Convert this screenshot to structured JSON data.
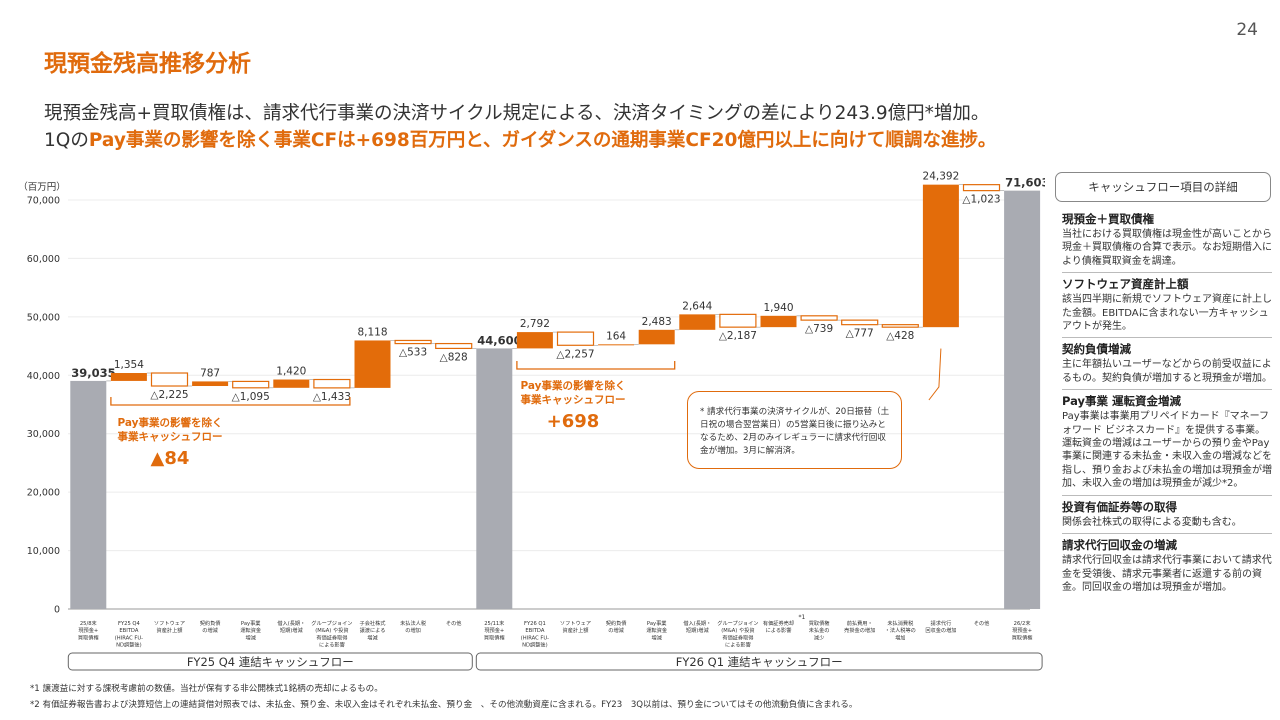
{
  "page_number": "24",
  "title": "現預金残高推移分析",
  "subtitle": {
    "line1": "現預金残高+買取債権は、請求代行事業の決済サイクル規定による、決済タイミングの差により243.9億円*増加。",
    "line2_prefix": "1Qの",
    "line2_highlight": "Pay事業の影響を除く事業CFは+698百万円と、ガイダンスの通期事業CF20億円以上に向けて順調な進捗。"
  },
  "chart_data": {
    "type": "bar",
    "subtype": "waterfall",
    "unit_label": "（百万円）",
    "ylim": [
      0,
      75000
    ],
    "yticks": [
      0,
      10000,
      20000,
      30000,
      40000,
      50000,
      60000,
      70000
    ],
    "ytick_labels": [
      "0",
      "10,000",
      "20,000",
      "30,000",
      "40,000",
      "50,000",
      "60,000",
      "70,000"
    ],
    "colors": {
      "total": "#a9abb2",
      "increase": "#e36c0a",
      "decrease_outline": "#e36c0a",
      "accent": "#e06b0d"
    },
    "bars": [
      {
        "category": "25/8末\n現預金+\n買取債権",
        "kind": "total",
        "value": 39035,
        "label": "39,035"
      },
      {
        "category": "FY25 Q4\nEBITDA\n(HIRAC FU-\nND調整後)",
        "kind": "increase",
        "value": 1354,
        "label": "1,354"
      },
      {
        "category": "ソフトウェア\n資産計上額",
        "kind": "decrease",
        "value": -2225,
        "label": "△2,225"
      },
      {
        "category": "契約負債\nの増減",
        "kind": "increase",
        "value": 787,
        "label": "787"
      },
      {
        "category": "Pay事業\n運転資金\n増減",
        "kind": "decrease",
        "value": -1095,
        "label": "△1,095"
      },
      {
        "category": "借入(長期・\n短期)増減",
        "kind": "increase",
        "value": 1420,
        "label": "1,420"
      },
      {
        "category": "グループジョイン\n(M&A) や投資\n有価証券取得\nによる影響",
        "kind": "decrease",
        "value": -1433,
        "label": "△1,433"
      },
      {
        "category": "子会社株式\n譲渡による\n増減",
        "kind": "increase",
        "value": 8118,
        "label": "8,118"
      },
      {
        "category": "未払法人税\nの増加",
        "kind": "decrease",
        "value": -533,
        "label": "△533"
      },
      {
        "category": "その他",
        "kind": "decrease",
        "value": -828,
        "label": "△828"
      },
      {
        "category": "25/11末\n現預金+\n買取債権",
        "kind": "total",
        "value": 44600,
        "label": "44,600"
      },
      {
        "category": "FY26 Q1\nEBITDA\n(HIRAC FU-\nND調整後)",
        "kind": "increase",
        "value": 2792,
        "label": "2,792"
      },
      {
        "category": "ソフトウェア\n資産計上額",
        "kind": "decrease",
        "value": -2257,
        "label": "△2,257"
      },
      {
        "category": "契約負債\nの増減",
        "kind": "increase",
        "value": 164,
        "label": "164"
      },
      {
        "category": "Pay事業\n運転資金\n増減",
        "kind": "increase",
        "value": 2483,
        "label": "2,483"
      },
      {
        "category": "借入(長期・\n短期)増減",
        "kind": "increase",
        "value": 2644,
        "label": "2,644"
      },
      {
        "category": "グループジョイン\n(M&A) や投資\n有価証券取得\nによる影響",
        "kind": "decrease",
        "value": -2187,
        "label": "△2,187"
      },
      {
        "category": "有価証券売却\nによる影響",
        "kind": "increase",
        "value": 1940,
        "label": "1,940",
        "note": "*1"
      },
      {
        "category": "買取債権\n未払金の\n減少",
        "kind": "decrease",
        "value": -739,
        "label": "△739"
      },
      {
        "category": "前払費用・\n売掛金の増加",
        "kind": "decrease",
        "value": -777,
        "label": "△777"
      },
      {
        "category": "未払消費税\n・法人税等の\n増加",
        "kind": "decrease",
        "value": -428,
        "label": "△428"
      },
      {
        "category": "請求代行\n回収金の増加",
        "kind": "increase",
        "value": 24392,
        "label": "24,392"
      },
      {
        "category": "その他",
        "kind": "decrease",
        "value": -1023,
        "label": "△1,023"
      },
      {
        "category": "26/2末\n現預金+\n買取債権",
        "kind": "total",
        "value": 71603,
        "label": "71,603"
      }
    ],
    "groups": [
      {
        "label": "FY25 Q4 連結キャッシュフロー"
      },
      {
        "label": "FY26 Q1 連結キャッシュフロー"
      }
    ],
    "brackets": [
      {
        "text1": "Pay事業の影響を除く",
        "text2": "事業キャッシュフロー",
        "value": "▲84"
      },
      {
        "text1": "Pay事業の影響を除く",
        "text2": "事業キャッシュフロー",
        "value": "+698"
      }
    ]
  },
  "callout": "* 請求代行事業の決済サイクルが、20日振替（土日祝の場合翌営業日）の5営業日後に振り込みとなるため、2月のみイレギュラーに請求代行回収金が増加。3月に解消済。",
  "details": {
    "header": "キャッシュフロー項目の詳細",
    "items": [
      {
        "heading": "現預金＋買取債権",
        "body": "当社における買取債権は現金性が高いことから現金＋買取債権の合算で表示。なお短期借入により債権買取資金を調達。"
      },
      {
        "heading": "ソフトウェア資産計上額",
        "body": "該当四半期に新規でソフトウェア資産に計上した金額。EBITDAに含まれない一方キャッシュアウトが発生。"
      },
      {
        "heading": "契約負債増減",
        "body": "主に年額払いユーザーなどからの前受収益によるもの。契約負債が増加すると現預金が増加。"
      },
      {
        "heading": "Pay事業 運転資金増減",
        "body": "Pay事業は事業用プリペイドカード『マネーフォワード ビジネスカード』を提供する事業。運転資金の増減はユーザーからの預り金やPay事業に関連する未払金・未収入金の増減などを指し、預り金および未払金の増加は現預金が増加、未収入金の増加は現預金が減少*2。"
      },
      {
        "heading": "投資有価証券等の取得",
        "body": "関係会社株式の取得による変動も含む。"
      },
      {
        "heading": "請求代行回収金の増減",
        "body": "請求代行回収金は請求代行事業において請求代金を受領後、請求元事業者に返還する前の資金。同回収金の増加は現預金が増加。"
      }
    ]
  },
  "footnotes": [
    "*1  譲渡益に対する課税考慮前の数値。当社が保有する非公開株式1銘柄の売却によるもの。",
    "*2  有価証券報告書および決算短信上の連結貸借対照表では、未払金、預り金、未収入金はそれぞれ未払金、預り金　、その他流動資産に含まれる。FY23　3Q以前は、預り金についてはその他流動負債に含まれる。"
  ]
}
